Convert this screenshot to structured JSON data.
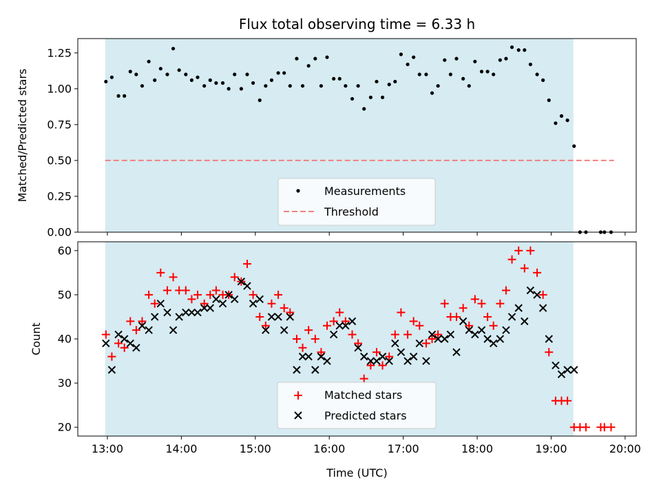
{
  "colors": {
    "shade": "#add8e6",
    "measure": "#000000",
    "threshold": "#f08080",
    "matched": "#ff0000",
    "predicted": "#000000"
  },
  "chart_data": [
    {
      "type": "scatter",
      "title": "Flux total observing time = 6.33 h",
      "xlabel": "",
      "ylabel": "Matched/Predicted stars",
      "xlim_hours": [
        12.6,
        20.15
      ],
      "ylim": [
        0,
        1.35
      ],
      "ytick_labels": [
        "0.00",
        "0.25",
        "0.50",
        "0.75",
        "1.00",
        "1.25"
      ],
      "shaded_span_hours": [
        12.97,
        19.3
      ],
      "threshold": {
        "value": 0.5,
        "x_from_hours": 12.97,
        "x_to_hours": 19.85
      },
      "legend": {
        "position": "lower center",
        "entries": [
          "Measurements",
          "Threshold"
        ]
      },
      "series": [
        {
          "name": "Measurements",
          "marker": "dot",
          "x_hours": [
            12.98,
            13.06,
            13.15,
            13.23,
            13.31,
            13.39,
            13.47,
            13.56,
            13.64,
            13.72,
            13.81,
            13.89,
            13.97,
            14.06,
            14.14,
            14.22,
            14.31,
            14.39,
            14.47,
            14.56,
            14.64,
            14.72,
            14.81,
            14.89,
            14.97,
            15.06,
            15.14,
            15.22,
            15.31,
            15.39,
            15.47,
            15.56,
            15.64,
            15.72,
            15.81,
            15.89,
            15.97,
            16.06,
            16.14,
            16.22,
            16.31,
            16.39,
            16.47,
            16.56,
            16.64,
            16.72,
            16.81,
            16.89,
            16.97,
            17.06,
            17.14,
            17.22,
            17.31,
            17.39,
            17.47,
            17.56,
            17.64,
            17.72,
            17.81,
            17.89,
            17.97,
            18.06,
            18.14,
            18.22,
            18.31,
            18.39,
            18.47,
            18.56,
            18.64,
            18.72,
            18.81,
            18.89,
            18.97,
            19.06,
            19.14,
            19.22,
            19.31,
            19.39,
            19.47,
            19.67,
            19.72,
            19.81
          ],
          "y": [
            1.05,
            1.08,
            0.95,
            0.95,
            1.12,
            1.1,
            1.02,
            1.19,
            1.06,
            1.14,
            1.1,
            1.28,
            1.13,
            1.1,
            1.06,
            1.08,
            1.02,
            1.06,
            1.04,
            1.04,
            1.0,
            1.1,
            1.0,
            1.1,
            1.04,
            0.92,
            1.02,
            1.06,
            1.11,
            1.11,
            1.02,
            1.21,
            1.02,
            1.16,
            1.21,
            1.02,
            1.22,
            1.07,
            1.07,
            1.02,
            0.93,
            1.02,
            0.86,
            0.94,
            1.05,
            0.94,
            1.03,
            1.05,
            1.24,
            1.17,
            1.22,
            1.1,
            1.1,
            0.97,
            1.02,
            1.2,
            1.1,
            1.21,
            1.07,
            1.02,
            1.19,
            1.12,
            1.12,
            1.1,
            1.2,
            1.21,
            1.29,
            1.27,
            1.27,
            1.17,
            1.1,
            1.06,
            0.92,
            0.76,
            0.81,
            0.78,
            0.6,
            0.0,
            0.0,
            0.0,
            0.0,
            0.0
          ]
        }
      ]
    },
    {
      "type": "scatter",
      "title": "",
      "xlabel": "Time (UTC)",
      "ylabel": "Count",
      "xlim_hours": [
        12.6,
        20.15
      ],
      "ylim": [
        18,
        62
      ],
      "ytick_labels": [
        "20",
        "30",
        "40",
        "50",
        "60"
      ],
      "xtick_labels": [
        "13:00",
        "14:00",
        "15:00",
        "16:00",
        "17:00",
        "18:00",
        "19:00",
        "20:00"
      ],
      "shaded_span_hours": [
        12.97,
        19.3
      ],
      "legend": {
        "position": "lower center",
        "entries": [
          "Matched stars",
          "Predicted stars"
        ]
      },
      "series": [
        {
          "name": "Matched stars",
          "marker": "plus",
          "x_hours": [
            12.98,
            13.06,
            13.15,
            13.23,
            13.31,
            13.39,
            13.47,
            13.56,
            13.64,
            13.72,
            13.81,
            13.89,
            13.97,
            14.06,
            14.14,
            14.22,
            14.31,
            14.39,
            14.47,
            14.56,
            14.64,
            14.72,
            14.81,
            14.89,
            14.97,
            15.06,
            15.14,
            15.22,
            15.31,
            15.39,
            15.47,
            15.56,
            15.64,
            15.72,
            15.81,
            15.89,
            15.97,
            16.06,
            16.14,
            16.22,
            16.31,
            16.39,
            16.47,
            16.56,
            16.64,
            16.72,
            16.81,
            16.89,
            16.97,
            17.06,
            17.14,
            17.22,
            17.31,
            17.39,
            17.47,
            17.56,
            17.64,
            17.72,
            17.81,
            17.89,
            17.97,
            18.06,
            18.14,
            18.22,
            18.31,
            18.39,
            18.47,
            18.56,
            18.64,
            18.72,
            18.81,
            18.89,
            18.97,
            19.06,
            19.14,
            19.22,
            19.31,
            19.39,
            19.47,
            19.67,
            19.72,
            19.81
          ],
          "y": [
            41,
            36,
            39,
            38,
            44,
            42,
            44,
            50,
            48,
            55,
            51,
            54,
            51,
            51,
            49,
            50,
            48,
            50,
            51,
            50,
            50,
            54,
            53,
            57,
            50,
            45,
            43,
            48,
            50,
            47,
            46,
            40,
            38,
            42,
            40,
            37,
            43,
            44,
            46,
            44,
            41,
            39,
            31,
            34,
            37,
            34,
            36,
            41,
            46,
            41,
            44,
            43,
            39,
            40,
            41,
            48,
            45,
            45,
            47,
            43,
            49,
            48,
            45,
            43,
            48,
            51,
            58,
            60,
            56,
            60,
            55,
            50,
            37,
            26,
            26,
            26,
            20,
            20,
            20,
            20,
            20,
            20
          ]
        },
        {
          "name": "Predicted stars",
          "marker": "x",
          "x_hours": [
            12.98,
            13.06,
            13.15,
            13.23,
            13.31,
            13.39,
            13.47,
            13.56,
            13.64,
            13.72,
            13.81,
            13.89,
            13.97,
            14.06,
            14.14,
            14.22,
            14.31,
            14.39,
            14.47,
            14.56,
            14.64,
            14.72,
            14.81,
            14.89,
            14.97,
            15.06,
            15.14,
            15.22,
            15.31,
            15.39,
            15.47,
            15.56,
            15.64,
            15.72,
            15.81,
            15.89,
            15.97,
            16.06,
            16.14,
            16.22,
            16.31,
            16.39,
            16.47,
            16.56,
            16.64,
            16.72,
            16.81,
            16.89,
            16.97,
            17.06,
            17.14,
            17.22,
            17.31,
            17.39,
            17.47,
            17.56,
            17.64,
            17.72,
            17.81,
            17.89,
            17.97,
            18.06,
            18.14,
            18.22,
            18.31,
            18.39,
            18.47,
            18.56,
            18.64,
            18.72,
            18.81,
            18.89,
            18.97,
            19.06,
            19.14,
            19.22,
            19.31
          ],
          "y": [
            39,
            33,
            41,
            40,
            39,
            38,
            43,
            42,
            45,
            48,
            46,
            42,
            45,
            46,
            46,
            46,
            47,
            47,
            49,
            48,
            50,
            49,
            53,
            52,
            48,
            49,
            42,
            45,
            45,
            42,
            45,
            33,
            36,
            36,
            33,
            36,
            35,
            41,
            43,
            43,
            44,
            38,
            36,
            35,
            35,
            36,
            35,
            39,
            37,
            35,
            36,
            39,
            35,
            41,
            40,
            40,
            41,
            37,
            44,
            42,
            41,
            42,
            40,
            39,
            40,
            42,
            45,
            47,
            44,
            51,
            50,
            47,
            40,
            34,
            32,
            33,
            33
          ]
        }
      ]
    }
  ]
}
